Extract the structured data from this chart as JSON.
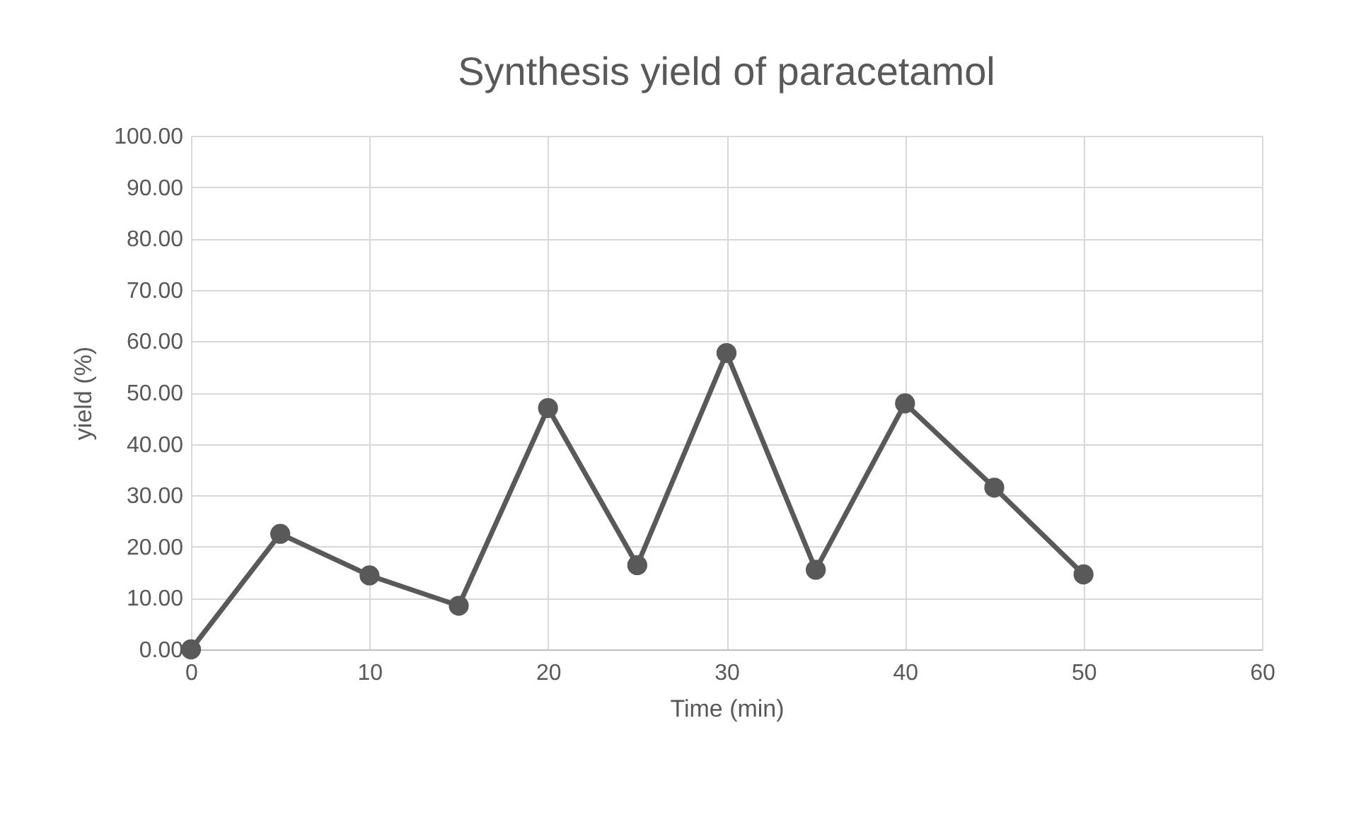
{
  "chart_data": {
    "type": "line",
    "title": "Synthesis yield of paracetamol",
    "xlabel": "Time (min)",
    "ylabel": "yield (%)",
    "x": [
      0,
      5,
      10,
      15,
      20,
      25,
      30,
      35,
      40,
      45,
      50
    ],
    "series": [
      {
        "color": "#595959",
        "values": [
          0,
          22.5,
          14.4,
          8.5,
          47.0,
          16.4,
          57.7,
          15.5,
          47.9,
          31.5,
          14.6
        ]
      }
    ],
    "xlim": [
      0,
      60
    ],
    "xticks": [
      0,
      10,
      20,
      30,
      40,
      50,
      60
    ],
    "ylim": [
      0,
      100
    ],
    "yticks": [
      {
        "value": 0,
        "label": "0.00"
      },
      {
        "value": 10,
        "label": "10.00"
      },
      {
        "value": 20,
        "label": "20.00"
      },
      {
        "value": 30,
        "label": "30.00"
      },
      {
        "value": 40,
        "label": "40.00"
      },
      {
        "value": 50,
        "label": "50.00"
      },
      {
        "value": 60,
        "label": "60.00"
      },
      {
        "value": 70,
        "label": "70.00"
      },
      {
        "value": 80,
        "label": "80.00"
      },
      {
        "value": 90,
        "label": "90.00"
      },
      {
        "value": 100,
        "label": "100.00"
      }
    ],
    "grid": true,
    "marker": "circle",
    "line_style": "solid"
  }
}
